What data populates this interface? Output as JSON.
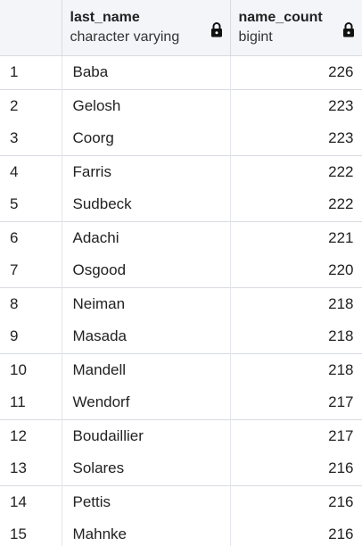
{
  "columns": [
    {
      "name": "last_name",
      "type": "character varying",
      "icon": "lock-icon"
    },
    {
      "name": "name_count",
      "type": "bigint",
      "icon": "lock-icon"
    }
  ],
  "rows": [
    {
      "num": "1",
      "last_name": "Baba",
      "name_count": "226"
    },
    {
      "num": "2",
      "last_name": "Gelosh",
      "name_count": "223"
    },
    {
      "num": "3",
      "last_name": "Coorg",
      "name_count": "223"
    },
    {
      "num": "4",
      "last_name": "Farris",
      "name_count": "222"
    },
    {
      "num": "5",
      "last_name": "Sudbeck",
      "name_count": "222"
    },
    {
      "num": "6",
      "last_name": "Adachi",
      "name_count": "221"
    },
    {
      "num": "7",
      "last_name": "Osgood",
      "name_count": "220"
    },
    {
      "num": "8",
      "last_name": "Neiman",
      "name_count": "218"
    },
    {
      "num": "9",
      "last_name": "Masada",
      "name_count": "218"
    },
    {
      "num": "10",
      "last_name": "Mandell",
      "name_count": "218"
    },
    {
      "num": "11",
      "last_name": "Wendorf",
      "name_count": "217"
    },
    {
      "num": "12",
      "last_name": "Boudaillier",
      "name_count": "217"
    },
    {
      "num": "13",
      "last_name": "Solares",
      "name_count": "216"
    },
    {
      "num": "14",
      "last_name": "Pettis",
      "name_count": "216"
    },
    {
      "num": "15",
      "last_name": "Mahnke",
      "name_count": "216"
    }
  ]
}
